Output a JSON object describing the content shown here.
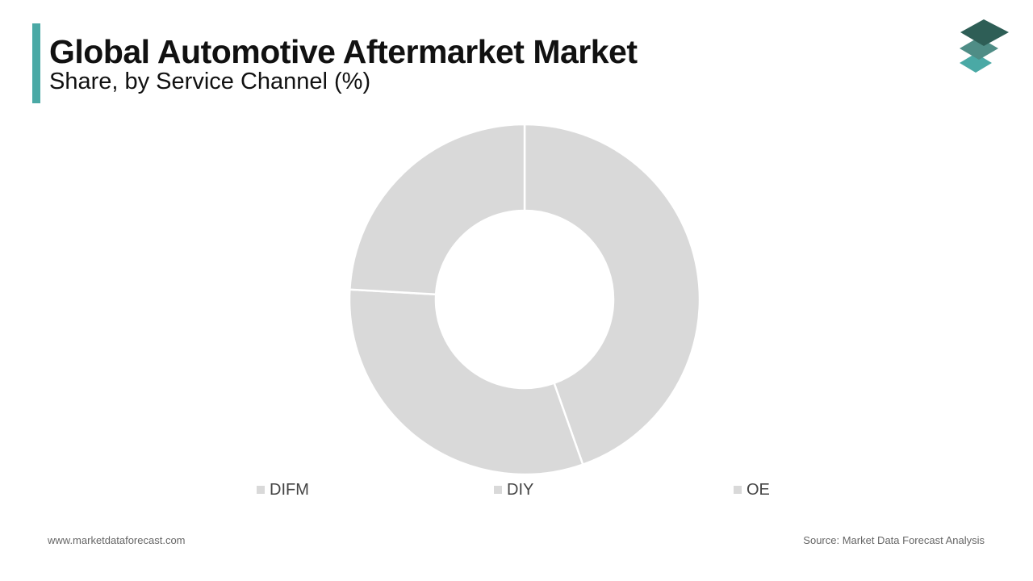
{
  "header": {
    "title": "Global Automotive Aftermarket Market",
    "subtitle": "Share, by Service Channel (%)",
    "accent_color": "#4aa9a5"
  },
  "logo": {
    "icon": "stacked-layers-icon",
    "colors": [
      "#2e5e56",
      "#4f8d86",
      "#4aa9a5"
    ]
  },
  "chart_data": {
    "type": "pie",
    "style": "donut",
    "legend_position": "bottom",
    "slice_color": "#d9d9d9",
    "separator_color": "#ffffff",
    "categories": [
      "DIFM",
      "DIY",
      "OE"
    ],
    "values": [
      44.6,
      31.3,
      24.1
    ]
  },
  "footer": {
    "website": "www.marketdataforecast.com",
    "source": "Source: Market Data Forecast Analysis"
  }
}
